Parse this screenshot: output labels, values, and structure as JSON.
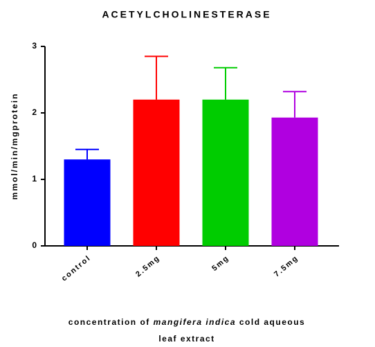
{
  "chart_data": {
    "type": "bar",
    "title": "ACETYLCHOLINESTERASE",
    "y_label": "mmol/min/mgprotein",
    "x_label_parts": [
      "concentration of",
      "mangifera indica",
      "cold aqueous",
      "leaf extract"
    ],
    "categories": [
      "control",
      "2.5mg",
      "5mg",
      "7.5mg"
    ],
    "values": [
      1.3,
      2.2,
      2.2,
      1.93
    ],
    "errors": [
      0.15,
      0.65,
      0.48,
      0.39
    ],
    "colors": [
      "#0000ff",
      "#ff0000",
      "#00cc00",
      "#b000e0"
    ],
    "ylim": [
      0,
      3
    ],
    "yticks": [
      0,
      1,
      2,
      3
    ]
  }
}
